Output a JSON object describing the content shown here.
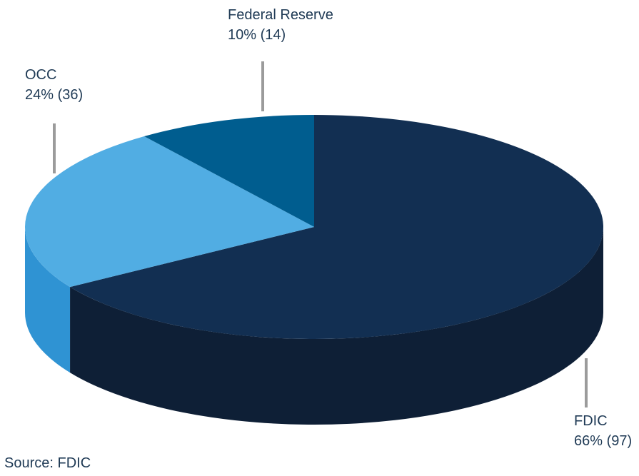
{
  "chart_data": {
    "type": "pie",
    "title": "",
    "slices": [
      {
        "name": "FDIC",
        "label": "FDIC",
        "value_text": "66% (97)",
        "percent": 66,
        "count": 97,
        "color": "#122f52",
        "side_color": "#0e1f36"
      },
      {
        "name": "OCC",
        "label": "OCC",
        "value_text": "24% (36)",
        "percent": 24,
        "count": 36,
        "color": "#51ade3",
        "side_color": "#2f93d3"
      },
      {
        "name": "Federal Reserve",
        "label": "Federal Reserve",
        "value_text": "10% (14)",
        "percent": 10,
        "count": 14,
        "color": "#005d8f",
        "side_color": "#004468"
      }
    ],
    "leader_line_color": "#9b9b9b"
  },
  "source_text": "Source: FDIC"
}
